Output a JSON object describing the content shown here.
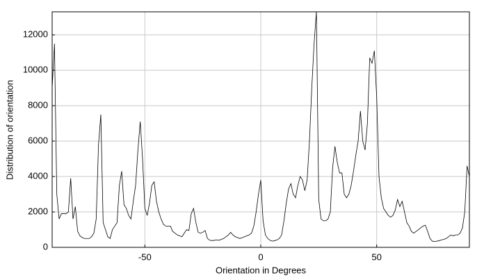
{
  "chart_data": {
    "type": "line",
    "x_label": "Orientation in Degrees",
    "y_label": "Distribution of orientation",
    "x": [
      -90,
      -89,
      -88,
      -87,
      -86,
      -85,
      -84,
      -83,
      -82,
      -81,
      -80,
      -79,
      -78,
      -77,
      -76,
      -75,
      -74,
      -73,
      -72,
      -71,
      -70,
      -69,
      -68,
      -67,
      -66,
      -65,
      -64,
      -63,
      -62,
      -61,
      -60,
      -59,
      -58,
      -57,
      -56,
      -55,
      -54,
      -53,
      -52,
      -51,
      -50,
      -49,
      -48,
      -47,
      -46,
      -45,
      -44,
      -43,
      -42,
      -41,
      -40,
      -39,
      -38,
      -37,
      -36,
      -35,
      -34,
      -33,
      -32,
      -31,
      -30,
      -29,
      -28,
      -27,
      -26,
      -25,
      -24,
      -23,
      -22,
      -21,
      -20,
      -19,
      -18,
      -17,
      -16,
      -15,
      -14,
      -13,
      -12,
      -11,
      -10,
      -9,
      -8,
      -7,
      -6,
      -5,
      -4,
      -3,
      -2,
      -1,
      0,
      1,
      2,
      3,
      4,
      5,
      6,
      7,
      8,
      9,
      10,
      11,
      12,
      13,
      14,
      15,
      16,
      17,
      18,
      19,
      20,
      21,
      22,
      23,
      24,
      25,
      26,
      27,
      28,
      29,
      30,
      31,
      32,
      33,
      34,
      35,
      36,
      37,
      38,
      39,
      40,
      41,
      42,
      43,
      44,
      45,
      46,
      47,
      48,
      49,
      50,
      51,
      52,
      53,
      54,
      55,
      56,
      57,
      58,
      59,
      60,
      61,
      62,
      63,
      64,
      65,
      66,
      67,
      68,
      69,
      70,
      71,
      72,
      73,
      74,
      75,
      76,
      77,
      78,
      79,
      80,
      81,
      82,
      83,
      84,
      85,
      86,
      87,
      88,
      89,
      90
    ],
    "values": [
      9000,
      11500,
      3000,
      1600,
      1900,
      1900,
      1900,
      2000,
      3900,
      1600,
      2300,
      900,
      650,
      550,
      500,
      500,
      500,
      600,
      800,
      1600,
      5800,
      7500,
      1400,
      1000,
      600,
      500,
      1000,
      1200,
      1400,
      3500,
      4300,
      2400,
      2200,
      1800,
      1600,
      2600,
      3500,
      5500,
      7100,
      5000,
      2200,
      1800,
      2500,
      3500,
      3700,
      2600,
      2000,
      1600,
      1300,
      1200,
      1200,
      1200,
      900,
      800,
      700,
      650,
      600,
      800,
      1000,
      950,
      1900,
      2200,
      1400,
      850,
      800,
      850,
      950,
      500,
      400,
      380,
      400,
      420,
      400,
      450,
      500,
      600,
      700,
      850,
      700,
      600,
      550,
      500,
      550,
      600,
      650,
      700,
      800,
      1200,
      2000,
      3000,
      3800,
      1500,
      700,
      500,
      400,
      350,
      380,
      420,
      500,
      700,
      1500,
      2500,
      3300,
      3600,
      3000,
      2800,
      3500,
      4000,
      3800,
      3200,
      3800,
      6000,
      9000,
      11500,
      13300,
      2700,
      1600,
      1500,
      1500,
      1600,
      2000,
      4500,
      5700,
      4800,
      4200,
      4200,
      3000,
      2800,
      3000,
      3500,
      4300,
      5200,
      6000,
      7700,
      6000,
      5500,
      7000,
      10700,
      10400,
      11100,
      8500,
      4000,
      2800,
      2200,
      2000,
      1800,
      1700,
      1800,
      2100,
      2700,
      2300,
      2600,
      2000,
      1400,
      1200,
      900,
      800,
      900,
      1000,
      1100,
      1200,
      1250,
      900,
      500,
      350,
      330,
      350,
      380,
      420,
      450,
      500,
      600,
      700,
      650,
      700,
      700,
      800,
      1100,
      2000,
      4600,
      4000
    ],
    "color": "#000000",
    "xlim": [
      -90,
      90
    ],
    "xticks": [
      -50,
      0,
      50
    ],
    "ylim": [
      0,
      13300
    ],
    "yticks": [
      0,
      2000,
      4000,
      6000,
      8000,
      10000,
      12000
    ],
    "grid": true
  }
}
